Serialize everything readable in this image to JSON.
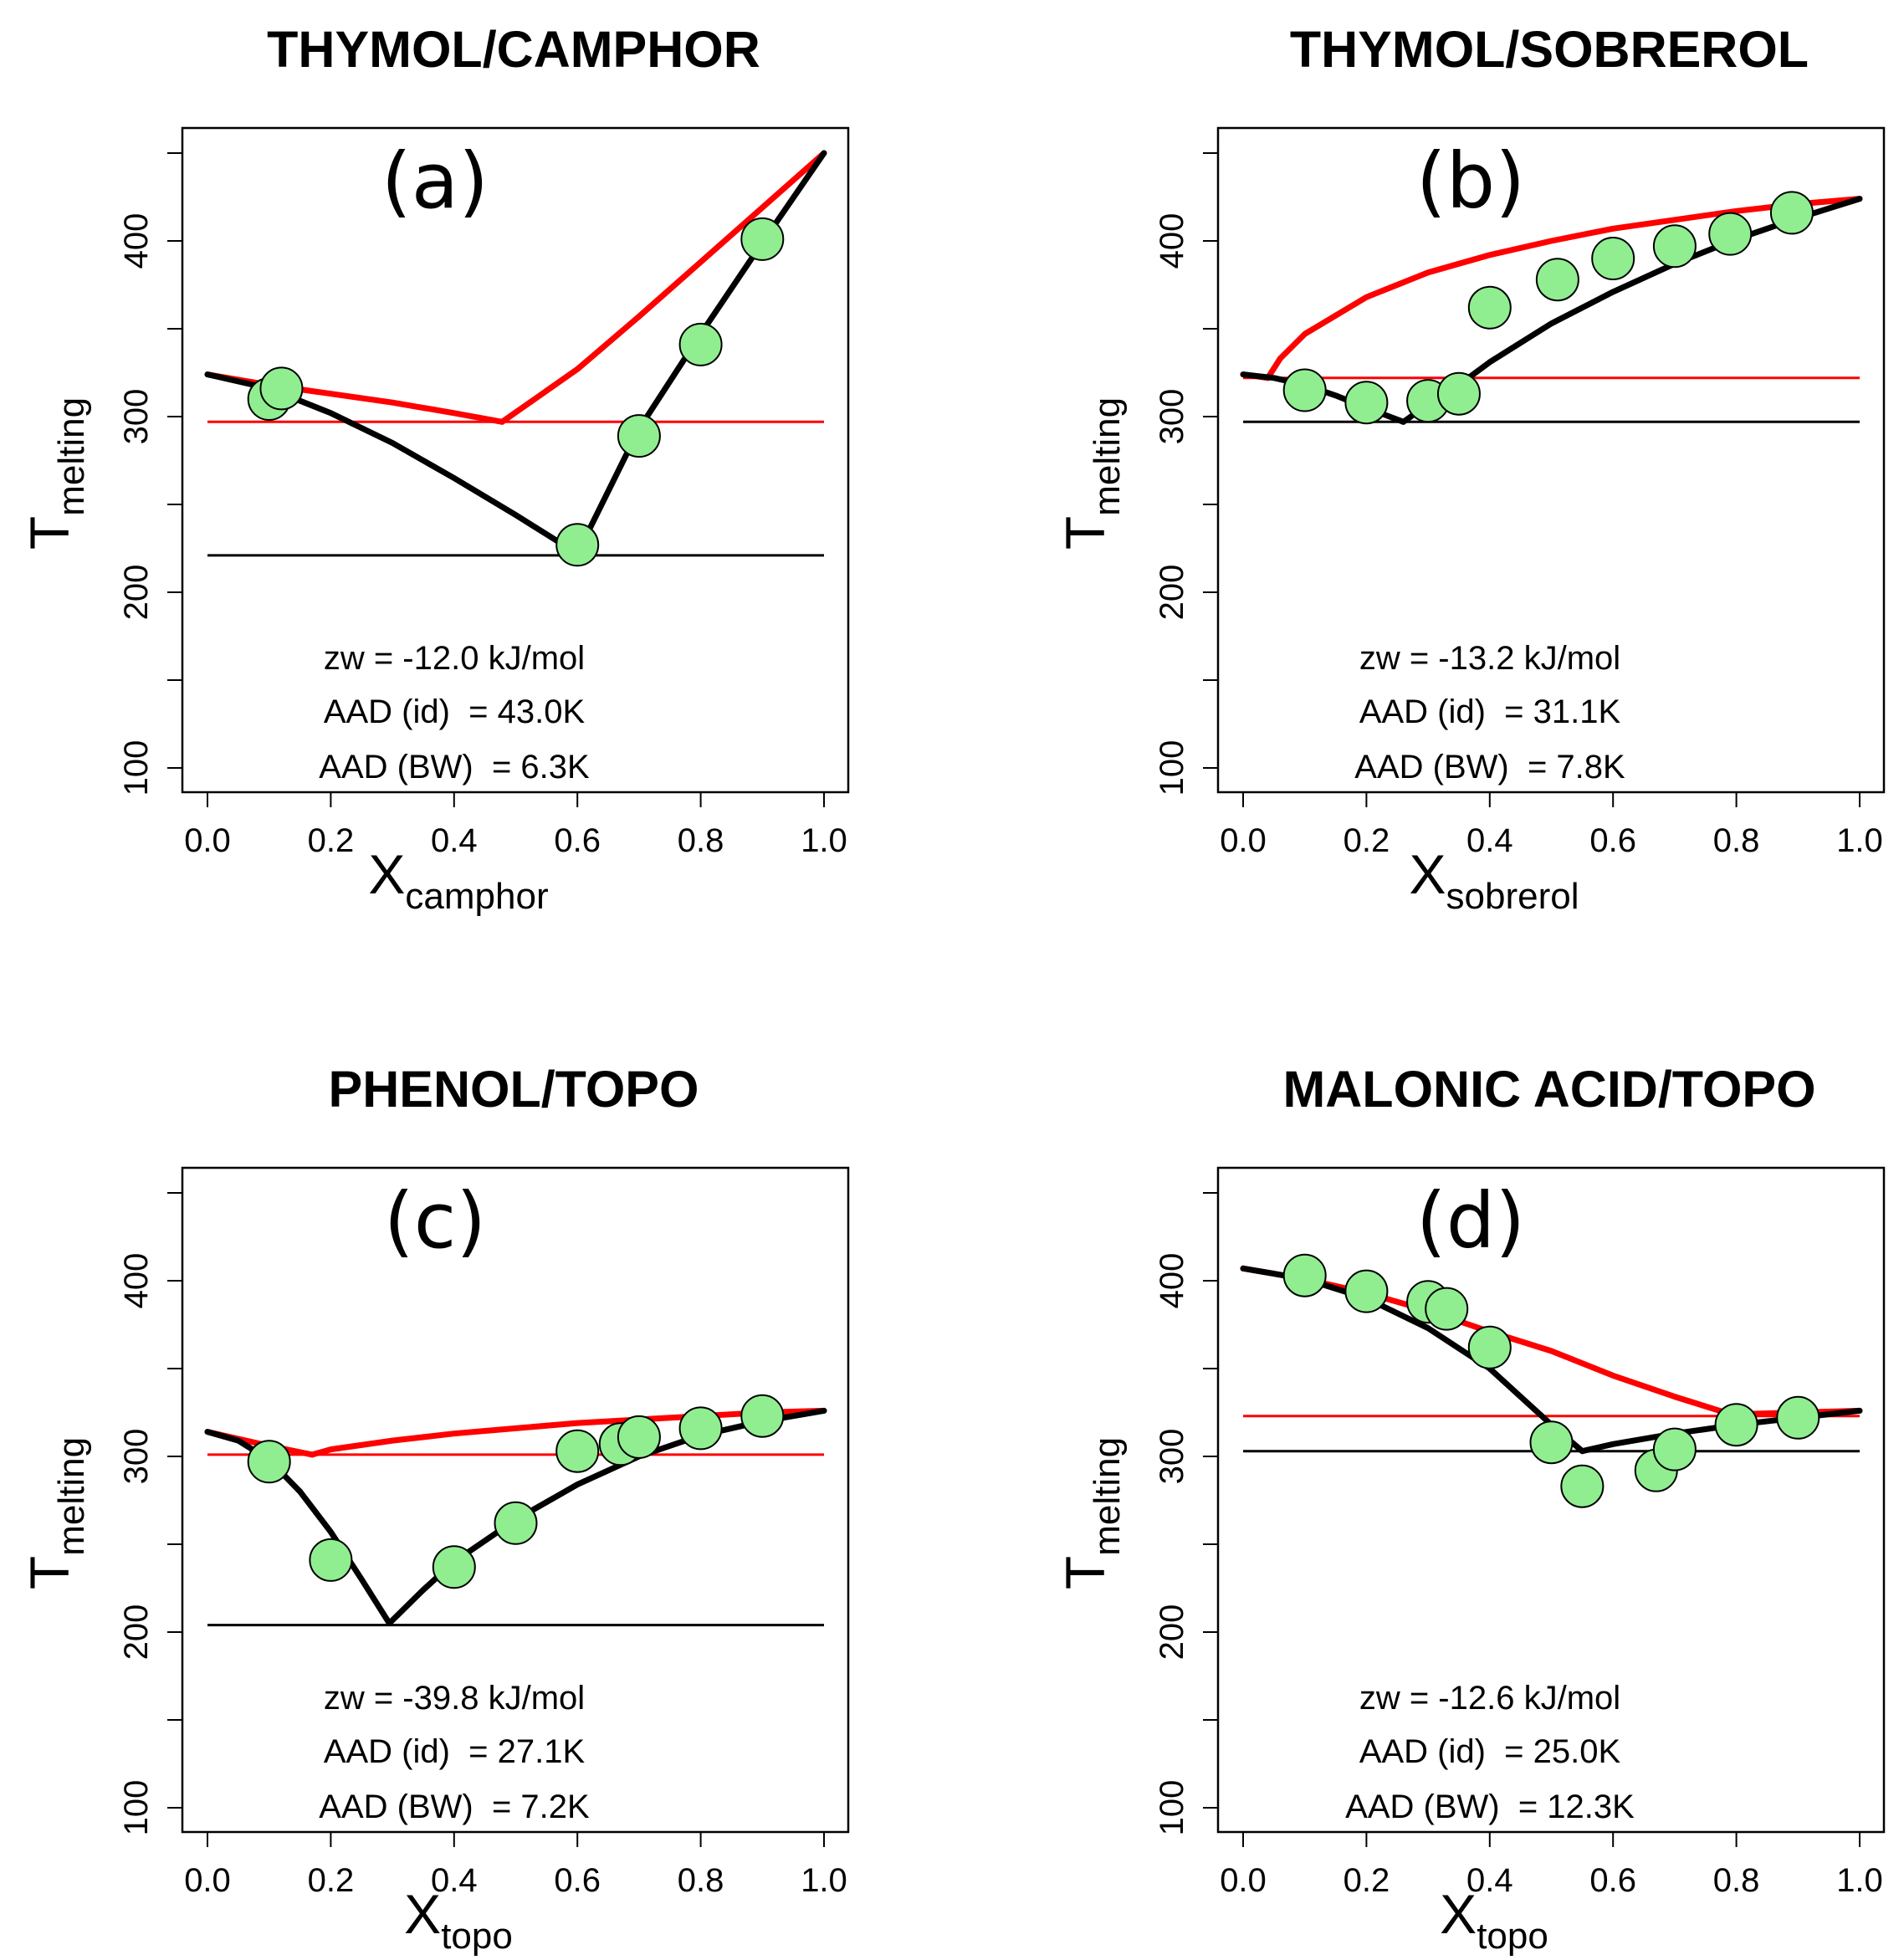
{
  "chart_data": [
    {
      "type": "line",
      "title": "THYMOL/CAMPHOR",
      "panel_label": "(a)",
      "xlabel_main": "X",
      "xlabel_sub": "camphor",
      "ylabel_main": "T",
      "ylabel_sub": "melting",
      "xlim": [
        0,
        1
      ],
      "ylim": [
        100,
        450
      ],
      "xticks": [
        "0.0",
        "0.2",
        "0.4",
        "0.6",
        "0.8",
        "1.0"
      ],
      "yticks": [
        "100",
        "200",
        "300",
        "400"
      ],
      "annotations": [
        "zw = -12.0 kJ/mol",
        "AAD (id)  = 43.0K",
        "AAD (BW)  = 6.3K"
      ],
      "colors": {
        "ideal": "#ff0000",
        "model": "#000000",
        "points": "#90ee90"
      },
      "ideal_eutectic_T": 297,
      "model_eutectic_T": 221,
      "series": [
        {
          "x": [
            0,
            0.1,
            0.2,
            0.3,
            0.4,
            0.478
          ],
          "y": [
            324,
            318,
            313,
            308,
            302,
            297
          ]
        },
        {
          "x": [
            0.478,
            0.6,
            0.7,
            0.8,
            0.9,
            1.0
          ],
          "y": [
            297,
            327,
            357,
            388,
            419,
            450
          ]
        },
        {
          "x": [
            0,
            0.1,
            0.2,
            0.3,
            0.4,
            0.5,
            0.6
          ],
          "y": [
            324,
            316,
            302,
            285,
            265,
            244,
            222
          ]
        },
        {
          "x": [
            0.6,
            0.7,
            0.8,
            0.9,
            1.0
          ],
          "y": [
            222,
            293,
            347,
            399,
            450
          ]
        }
      ],
      "points": {
        "x": [
          0.1,
          0.12,
          0.6,
          0.7,
          0.8,
          0.9
        ],
        "y": [
          310,
          316,
          227,
          289,
          341,
          401
        ]
      }
    },
    {
      "type": "line",
      "title": "THYMOL/SOBREROL",
      "panel_label": "(b)",
      "xlabel_main": "X",
      "xlabel_sub": "sobrerol",
      "ylabel_main": "T",
      "ylabel_sub": "melting",
      "xlim": [
        0,
        1
      ],
      "ylim": [
        100,
        450
      ],
      "xticks": [
        "0.0",
        "0.2",
        "0.4",
        "0.6",
        "0.8",
        "1.0"
      ],
      "yticks": [
        "100",
        "200",
        "300",
        "400"
      ],
      "annotations": [
        "zw = -13.2 kJ/mol",
        "AAD (id)  = 31.1K",
        "AAD (BW)  = 7.8K"
      ],
      "colors": {
        "ideal": "#ff0000",
        "model": "#000000",
        "points": "#90ee90"
      },
      "ideal_eutectic_T": 322,
      "model_eutectic_T": 297,
      "series": [
        {
          "x": [
            0,
            0.02,
            0.04
          ],
          "y": [
            324,
            323,
            322
          ]
        },
        {
          "x": [
            0.04,
            0.06,
            0.1,
            0.2,
            0.3,
            0.4,
            0.5,
            0.6,
            0.7,
            0.8,
            0.9,
            1.0
          ],
          "y": [
            322,
            333,
            347,
            368,
            382,
            392,
            400,
            407,
            412,
            417,
            421,
            424
          ]
        },
        {
          "x": [
            0,
            0.05,
            0.1,
            0.15,
            0.2,
            0.26
          ],
          "y": [
            324,
            322,
            318,
            312,
            305,
            297
          ]
        },
        {
          "x": [
            0.26,
            0.3,
            0.35,
            0.4,
            0.5,
            0.6,
            0.7,
            0.8,
            0.9,
            1.0
          ],
          "y": [
            297,
            307,
            318,
            331,
            353,
            371,
            387,
            401,
            413,
            424
          ]
        }
      ],
      "points": {
        "x": [
          0.1,
          0.2,
          0.3,
          0.35,
          0.4,
          0.51,
          0.6,
          0.7,
          0.79,
          0.89
        ],
        "y": [
          315,
          308,
          309,
          313,
          362,
          378,
          390,
          397,
          404,
          416
        ]
      }
    },
    {
      "type": "line",
      "title": "PHENOL/TOPO",
      "panel_label": "(c)",
      "xlabel_main": "X",
      "xlabel_sub": "topo",
      "ylabel_main": "T",
      "ylabel_sub": "melting",
      "xlim": [
        0,
        1
      ],
      "ylim": [
        100,
        450
      ],
      "xticks": [
        "0.0",
        "0.2",
        "0.4",
        "0.6",
        "0.8",
        "1.0"
      ],
      "yticks": [
        "100",
        "200",
        "300",
        "400"
      ],
      "annotations": [
        "zw = -39.8 kJ/mol",
        "AAD (id)  = 27.1K",
        "AAD (BW)  = 7.2K"
      ],
      "colors": {
        "ideal": "#ff0000",
        "model": "#000000",
        "points": "#90ee90"
      },
      "ideal_eutectic_T": 301,
      "model_eutectic_T": 204,
      "series": [
        {
          "x": [
            0,
            0.05,
            0.1,
            0.17
          ],
          "y": [
            314,
            310,
            306,
            301
          ]
        },
        {
          "x": [
            0.17,
            0.2,
            0.3,
            0.4,
            0.5,
            0.6,
            0.7,
            0.8,
            0.9,
            1.0
          ],
          "y": [
            301,
            304,
            309,
            313,
            316,
            319,
            321,
            323,
            325,
            326
          ]
        },
        {
          "x": [
            0,
            0.05,
            0.1,
            0.15,
            0.2,
            0.25,
            0.295
          ],
          "y": [
            314,
            309,
            298,
            280,
            257,
            230,
            205
          ]
        },
        {
          "x": [
            0.295,
            0.35,
            0.4,
            0.5,
            0.6,
            0.7,
            0.8,
            0.9,
            1.0
          ],
          "y": [
            205,
            224,
            240,
            264,
            284,
            300,
            312,
            320,
            326
          ]
        }
      ],
      "points": {
        "x": [
          0.1,
          0.2,
          0.4,
          0.5,
          0.6,
          0.67,
          0.7,
          0.8,
          0.9
        ],
        "y": [
          297,
          241,
          237,
          262,
          303,
          307,
          311,
          316,
          323
        ]
      }
    },
    {
      "type": "line",
      "title": "MALONIC ACID/TOPO",
      "panel_label": "(d)",
      "xlabel_main": "X",
      "xlabel_sub": "topo",
      "ylabel_main": "T",
      "ylabel_sub": "melting",
      "xlim": [
        0,
        1
      ],
      "ylim": [
        100,
        450
      ],
      "xticks": [
        "0.0",
        "0.2",
        "0.4",
        "0.6",
        "0.8",
        "1.0"
      ],
      "yticks": [
        "100",
        "200",
        "300",
        "400"
      ],
      "annotations": [
        "zw = -12.6 kJ/mol",
        "AAD (id)  = 25.0K",
        "AAD (BW)  = 12.3K"
      ],
      "colors": {
        "ideal": "#ff0000",
        "model": "#000000",
        "points": "#90ee90"
      },
      "ideal_eutectic_T": 323,
      "model_eutectic_T": 303,
      "series": [
        {
          "x": [
            0,
            0.1,
            0.2,
            0.3,
            0.4,
            0.5,
            0.6,
            0.7,
            0.8
          ],
          "y": [
            407,
            401,
            393,
            383,
            371,
            360,
            346,
            334,
            323
          ]
        },
        {
          "x": [
            0.8,
            0.9,
            1.0
          ],
          "y": [
            324,
            325,
            326
          ]
        },
        {
          "x": [
            0,
            0.1,
            0.2,
            0.3,
            0.4,
            0.5,
            0.55
          ],
          "y": [
            407,
            401,
            390,
            373,
            350,
            318,
            303
          ]
        },
        {
          "x": [
            0.55,
            0.6,
            0.7,
            0.8,
            0.9,
            1.0
          ],
          "y": [
            303,
            307,
            313,
            318,
            322,
            326
          ]
        }
      ],
      "points": {
        "x": [
          0.1,
          0.2,
          0.3,
          0.33,
          0.4,
          0.5,
          0.55,
          0.67,
          0.7,
          0.8,
          0.9
        ],
        "y": [
          403,
          394,
          388,
          384,
          362,
          308,
          283,
          292,
          304,
          318,
          322
        ]
      }
    }
  ]
}
